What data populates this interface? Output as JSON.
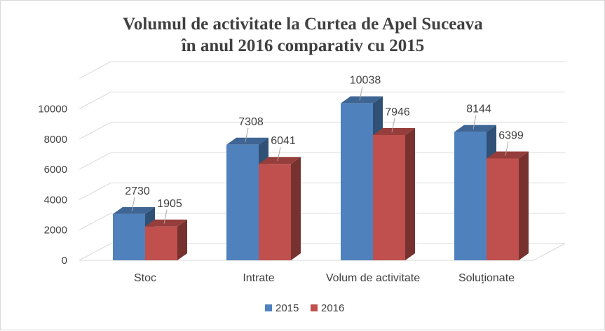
{
  "chart_data": {
    "type": "bar",
    "title": [
      "Volumul de activitate la Curtea de Apel Suceava",
      "în anul 2016 comparativ cu 2015"
    ],
    "categories": [
      "Stoc",
      "Intrate",
      "Volum de activitate",
      "Soluționate"
    ],
    "series": [
      {
        "name": "2015",
        "values": [
          2730,
          7308,
          10038,
          8144
        ],
        "color": "#4f81bd"
      },
      {
        "name": "2016",
        "values": [
          1905,
          6041,
          7946,
          6399
        ],
        "color": "#c0504d"
      }
    ],
    "y_ticks": [
      "0",
      "2000",
      "4000",
      "6000",
      "8000",
      "10000"
    ],
    "ylim": [
      0,
      12000
    ],
    "grid": true,
    "legend_position": "bottom",
    "style": "3d-clustered-column"
  }
}
